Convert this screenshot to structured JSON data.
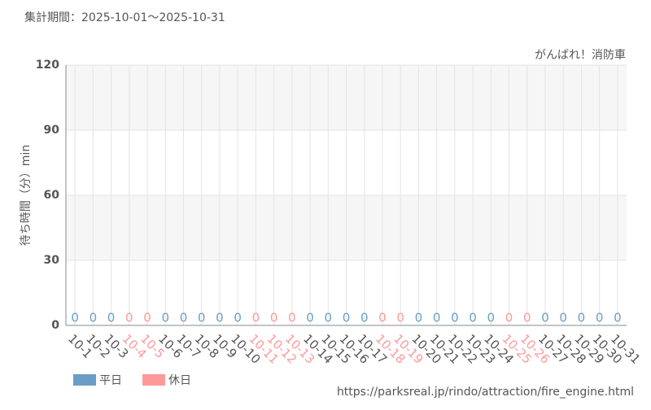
{
  "chart_data": {
    "type": "bar",
    "title": "集計期間：2025-10-01〜2025-10-31",
    "subtitle": "がんばれ！消防車",
    "y_label": "待ち時間（分）min",
    "source": "https://parksreal.jp/rindo/attraction/fire_engine.html",
    "categories": [
      "10-1",
      "10-2",
      "10-3",
      "10-4",
      "10-5",
      "10-6",
      "10-7",
      "10-8",
      "10-9",
      "10-10",
      "10-11",
      "10-12",
      "10-13",
      "10-14",
      "10-15",
      "10-16",
      "10-17",
      "10-18",
      "10-19",
      "10-20",
      "10-21",
      "10-22",
      "10-23",
      "10-24",
      "10-25",
      "10-26",
      "10-27",
      "10-28",
      "10-29",
      "10-30",
      "10-31"
    ],
    "series": [
      {
        "name": "平日",
        "color": "#6a9ec8",
        "values": [
          0,
          0,
          0,
          null,
          null,
          0,
          0,
          0,
          0,
          0,
          null,
          null,
          null,
          0,
          0,
          0,
          0,
          null,
          null,
          0,
          0,
          0,
          0,
          0,
          null,
          null,
          0,
          0,
          0,
          0,
          0
        ]
      },
      {
        "name": "休日",
        "color": "#ff9999",
        "values": [
          null,
          null,
          null,
          0,
          0,
          null,
          null,
          null,
          null,
          null,
          0,
          0,
          0,
          null,
          null,
          null,
          null,
          0,
          0,
          null,
          null,
          null,
          null,
          null,
          0,
          0,
          null,
          null,
          null,
          null,
          null
        ]
      }
    ],
    "ylim": [
      0,
      120
    ],
    "yticks": [
      0,
      30,
      60,
      90,
      120
    ],
    "grid": true,
    "legend": "bottom-left"
  }
}
